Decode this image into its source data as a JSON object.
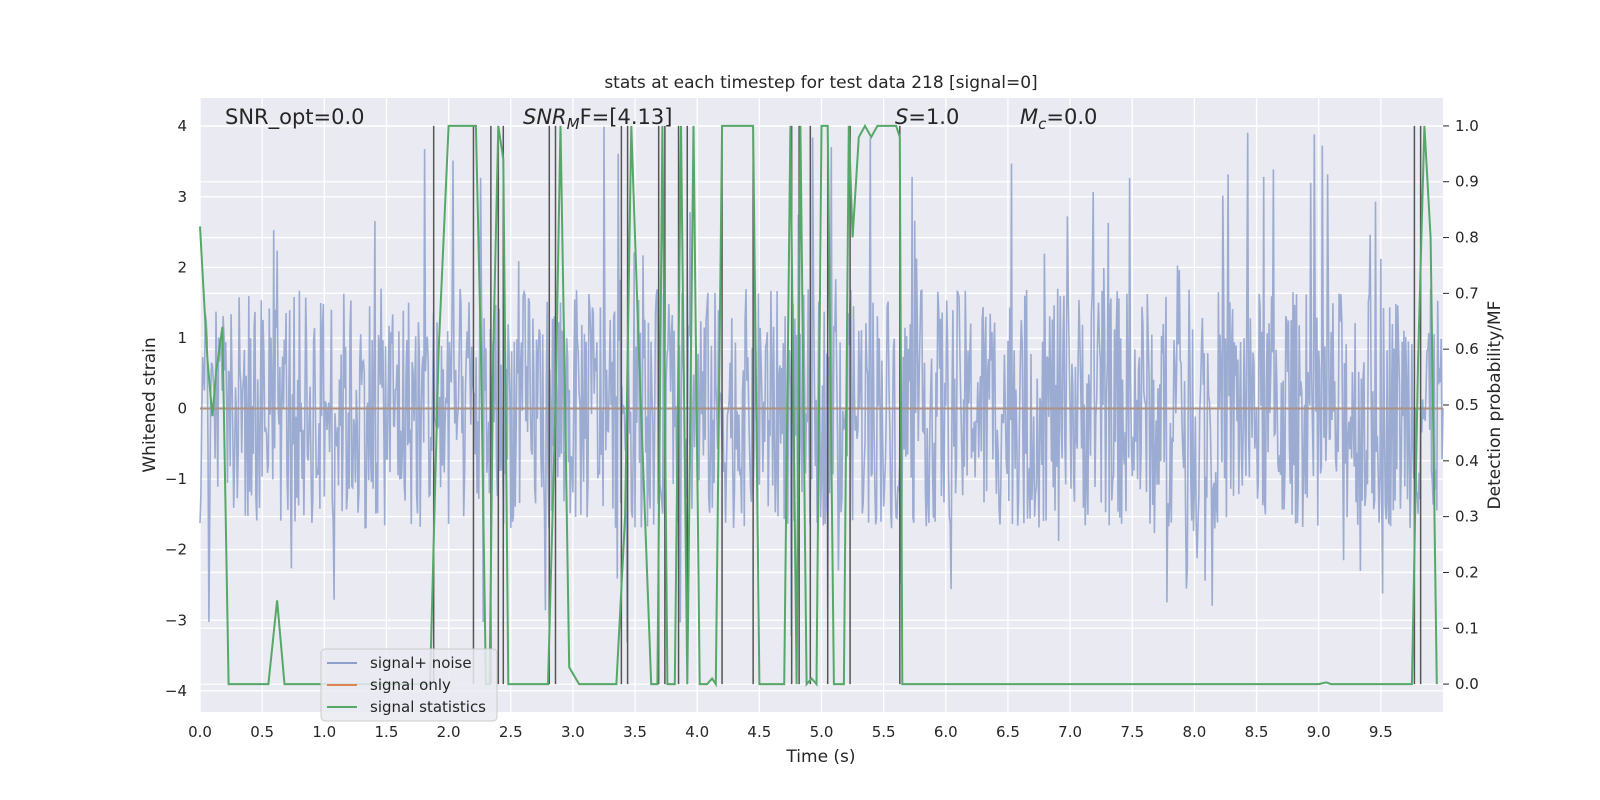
{
  "chart_data": {
    "type": "line",
    "title": "stats at each timestep for test data 218 [signal=0]",
    "xlabel": "Time (s)",
    "ylabel": "Whitened strain",
    "y2label": "Detection probability/MF",
    "xlim": [
      0.0,
      10.0
    ],
    "ylim": [
      -4.3,
      4.4
    ],
    "y2lim": [
      -0.05,
      1.05
    ],
    "xticks": [
      "0.0",
      "0.5",
      "1.0",
      "1.5",
      "2.0",
      "2.5",
      "3.0",
      "3.5",
      "4.0",
      "4.5",
      "5.0",
      "5.5",
      "6.0",
      "6.5",
      "7.0",
      "7.5",
      "8.0",
      "8.5",
      "9.0",
      "9.5"
    ],
    "yticks": [
      "−4",
      "−3",
      "−2",
      "−1",
      "0",
      "1",
      "2",
      "3",
      "4"
    ],
    "y2ticks": [
      "0.0",
      "0.1",
      "0.2",
      "0.3",
      "0.4",
      "0.5",
      "0.6",
      "0.7",
      "0.8",
      "0.9",
      "1.0"
    ],
    "grid": true,
    "legend_position": "lower-left",
    "annotations": {
      "snr_opt": "SNR_opt=0.0",
      "snr_mf_var": "SNR",
      "snr_mf_sub": "M",
      "snr_mf_rest": "F=[4.13]",
      "s_var": "S",
      "s_rest": "=1.0",
      "mc_var": "M",
      "mc_sub": "c",
      "mc_rest": "=0.0"
    },
    "series": [
      {
        "name": "signal+ noise",
        "color": "#8da0cb",
        "axis": "left",
        "typical_range": [
          -1.7,
          1.7
        ],
        "peak_range": [
          -3.4,
          4.0
        ]
      },
      {
        "name": "signal only",
        "color": "#dd8452",
        "axis": "left",
        "constant": 0.0
      },
      {
        "name": "signal statistics",
        "color": "#55a868",
        "axis": "right",
        "x": [
          0.0,
          0.03,
          0.06,
          0.1,
          0.13,
          0.18,
          0.23,
          0.45,
          0.55,
          0.62,
          0.68,
          1.0,
          1.5,
          1.85,
          1.92,
          2.0,
          2.1,
          2.2,
          2.22,
          2.26,
          2.3,
          2.33,
          2.36,
          2.4,
          2.44,
          2.48,
          2.6,
          2.8,
          2.86,
          2.9,
          2.93,
          2.97,
          3.05,
          3.35,
          3.42,
          3.47,
          3.53,
          3.63,
          3.68,
          3.72,
          3.76,
          3.82,
          3.87,
          3.92,
          3.97,
          4.02,
          4.08,
          4.12,
          4.15,
          4.2,
          4.3,
          4.4,
          4.45,
          4.5,
          4.6,
          4.7,
          4.75,
          4.8,
          4.83,
          4.88,
          4.92,
          4.96,
          5.0,
          5.05,
          5.1,
          5.13,
          5.18,
          5.22,
          5.25,
          5.3,
          5.35,
          5.4,
          5.45,
          5.5,
          5.58,
          5.6,
          5.63,
          5.65,
          5.7,
          6.0,
          7.0,
          8.0,
          9.0,
          9.06,
          9.1,
          9.3,
          9.5,
          9.75,
          9.8,
          9.85,
          9.9,
          9.95
        ],
        "y": [
          0.82,
          0.7,
          0.58,
          0.48,
          0.56,
          0.64,
          0.0,
          0.0,
          0.0,
          0.15,
          0.0,
          0.0,
          0.0,
          0.0,
          0.6,
          1.0,
          1.0,
          1.0,
          1.0,
          0.6,
          0.0,
          0.0,
          0.6,
          1.0,
          0.94,
          0.0,
          0.0,
          0.0,
          0.5,
          1.0,
          0.6,
          0.03,
          0.0,
          0.0,
          0.3,
          1.0,
          0.6,
          0.0,
          0.0,
          1.0,
          0.0,
          0.0,
          1.0,
          0.0,
          1.0,
          0.0,
          0.0,
          0.01,
          0.0,
          1.0,
          1.0,
          1.0,
          1.0,
          0.0,
          0.0,
          0.0,
          1.0,
          0.0,
          1.0,
          0.0,
          0.01,
          0.0,
          1.0,
          1.0,
          0.0,
          0.0,
          0.0,
          1.0,
          0.8,
          0.98,
          1.0,
          0.98,
          1.0,
          1.0,
          1.0,
          1.0,
          0.98,
          0.0,
          0.0,
          0.0,
          0.0,
          0.0,
          0.0,
          0.003,
          0.0,
          0.0,
          0.0,
          0.0,
          0.58,
          1.0,
          0.8,
          0.0
        ]
      }
    ],
    "vertical_markers": [
      1.88,
      2.2,
      2.34,
      2.4,
      2.44,
      2.81,
      2.86,
      3.39,
      3.44,
      3.69,
      3.74,
      3.85,
      3.92,
      4.2,
      4.45,
      4.76,
      4.82,
      4.91,
      5.05,
      5.23,
      5.63,
      9.77,
      9.82
    ]
  }
}
